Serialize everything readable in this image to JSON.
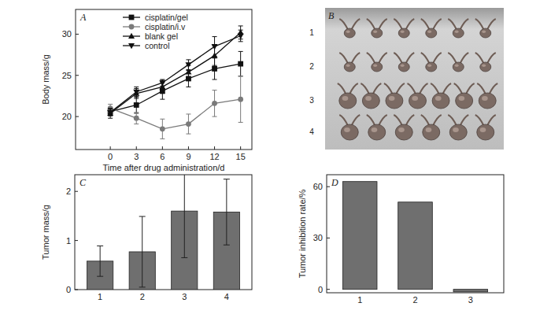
{
  "chart_data": [
    {
      "type": "line",
      "title": "A",
      "x_label": "Time after drug administration/d",
      "y_label": "Body mass/g",
      "x": [
        0,
        3,
        6,
        9,
        12,
        15
      ],
      "xlim": [
        -4,
        16.3
      ],
      "xticks": [
        0,
        3,
        6,
        9,
        12,
        15
      ],
      "ylim": [
        16,
        33
      ],
      "yticks": [
        20,
        25,
        30
      ],
      "legend": "upper left",
      "series": [
        {
          "name": "cisplatin/gel",
          "color": "#111111",
          "marker": "square",
          "line_style": "solid",
          "values": [
            20.6,
            21.4,
            23.1,
            24.6,
            25.8,
            26.4
          ],
          "errors": [
            0.5,
            1.0,
            1.0,
            1.0,
            1.3,
            1.5
          ]
        },
        {
          "name": "cisplatin/i.v",
          "color": "#7a7a7a",
          "marker": "circle",
          "line_style": "solid",
          "values": [
            21.0,
            19.8,
            18.5,
            19.1,
            21.6,
            22.1
          ],
          "errors": [
            0.5,
            0.7,
            1.2,
            1.2,
            1.6,
            2.8
          ]
        },
        {
          "name": "blank gel",
          "color": "#111111",
          "marker": "triangle-up",
          "line_style": "solid",
          "values": [
            20.4,
            22.8,
            23.6,
            25.4,
            27.4,
            30.2
          ],
          "errors": [
            0.6,
            0.6,
            0.8,
            0.8,
            1.2,
            0.8
          ]
        },
        {
          "name": "control",
          "color": "#111111",
          "marker": "triangle-down",
          "line_style": "solid",
          "values": [
            20.5,
            23.0,
            24.1,
            26.3,
            28.5,
            29.8
          ],
          "errors": [
            0.4,
            0.6,
            0.4,
            0.6,
            1.2,
            0.7
          ]
        }
      ]
    },
    {
      "type": "bar",
      "title": "C",
      "y_label": "Tumor mass/g",
      "categories": [
        "1",
        "2",
        "3",
        "4"
      ],
      "values": [
        0.58,
        0.77,
        1.6,
        1.58
      ],
      "errors": [
        0.31,
        0.72,
        0.95,
        0.67
      ],
      "color": "#6f6f6f",
      "ylim": [
        0,
        2.34
      ],
      "yticks": [
        0,
        1,
        2
      ]
    },
    {
      "type": "bar",
      "title": "D",
      "y_label": "Tumor inhibition rate/%",
      "categories": [
        "1",
        "2",
        "3"
      ],
      "values": [
        63,
        51,
        -1.5
      ],
      "color": "#6f6f6f",
      "ylim": [
        -2,
        67
      ],
      "yticks": [
        0,
        30,
        60
      ]
    }
  ],
  "photo": {
    "title": "B",
    "row_labels": [
      "1",
      "2",
      "3",
      "4"
    ]
  }
}
